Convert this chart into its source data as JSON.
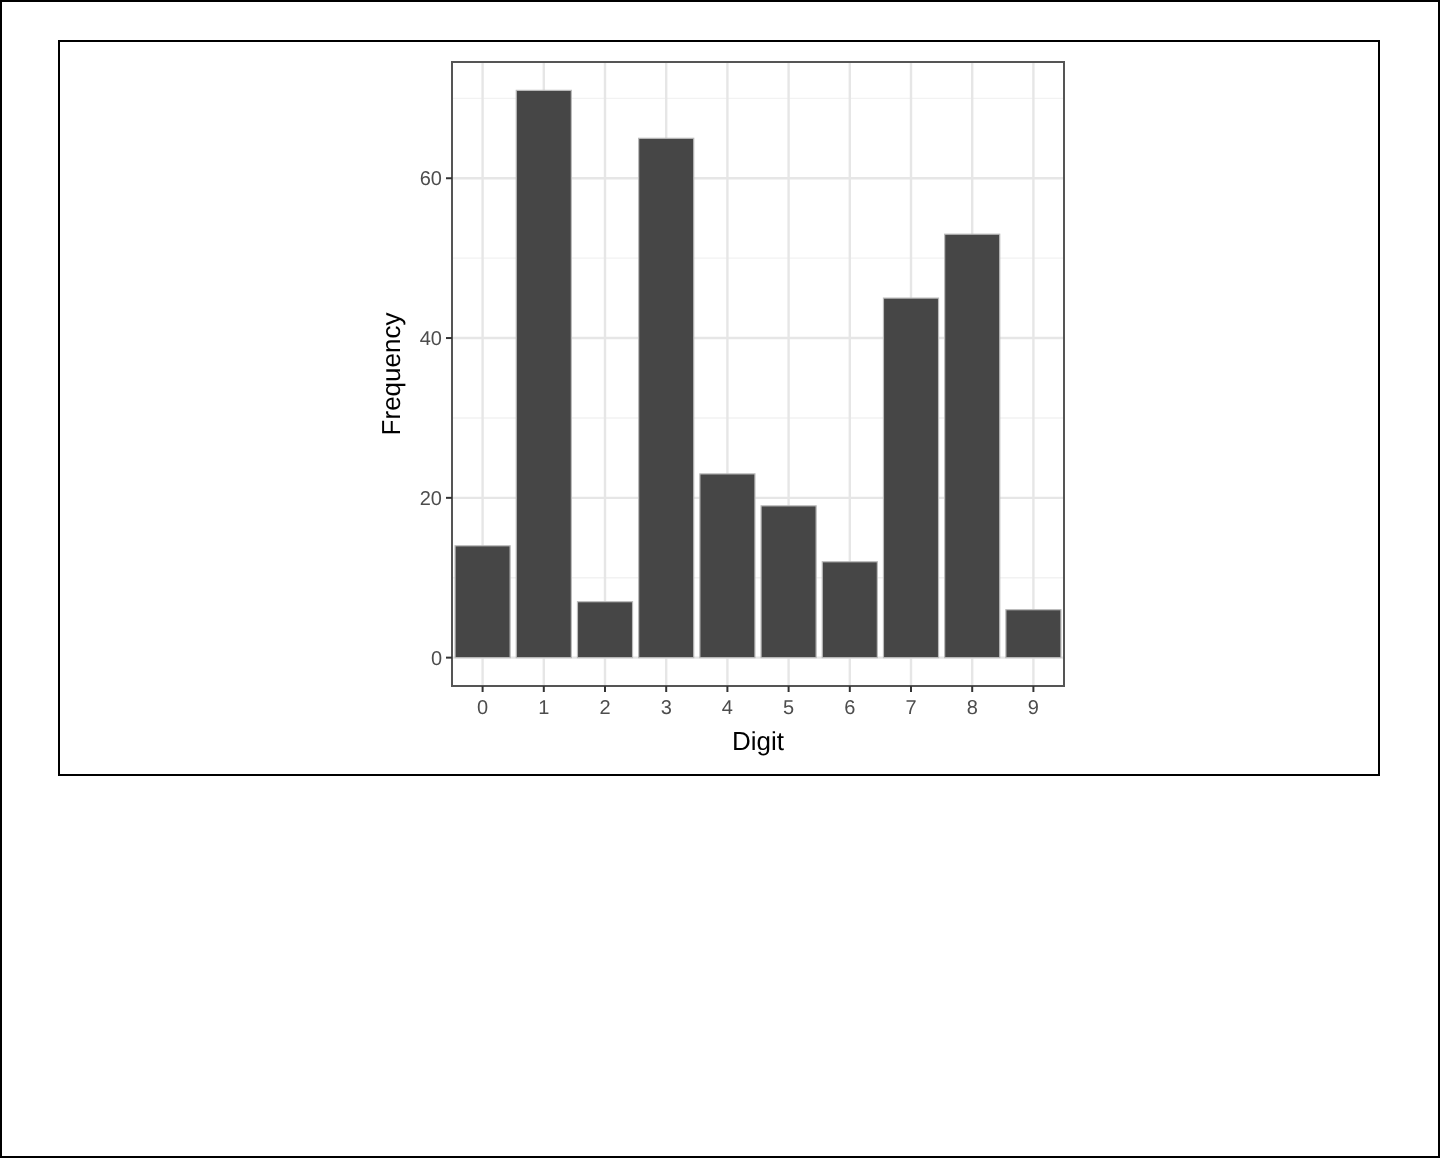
{
  "chart_data": {
    "type": "bar",
    "xlabel": "Digit",
    "ylabel": "Frequency",
    "categories": [
      "0",
      "1",
      "2",
      "3",
      "4",
      "5",
      "6",
      "7",
      "8",
      "9"
    ],
    "values": [
      14,
      71,
      7,
      65,
      23,
      19,
      12,
      45,
      53,
      6
    ],
    "color": "#464646",
    "ylim": [
      -3.55,
      74.55
    ],
    "yticks": [
      0,
      20,
      40,
      60
    ],
    "grid": true
  }
}
